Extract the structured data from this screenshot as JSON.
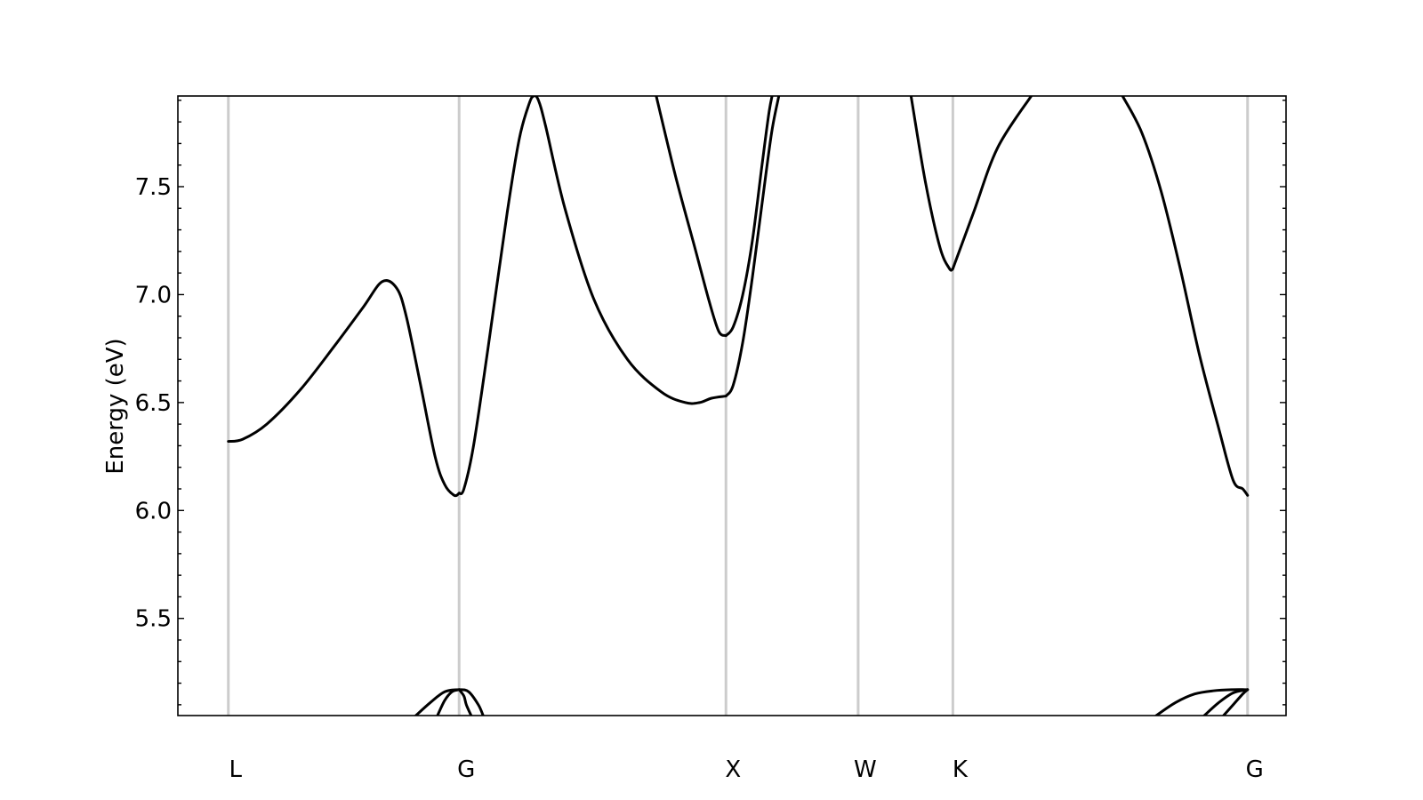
{
  "chart_data": {
    "type": "line",
    "ylabel": "Energy (eV)",
    "xlabel": "",
    "ylim": [
      5.05,
      7.92
    ],
    "xlim": [
      -0.105,
      2.2
    ],
    "yticks": [
      5.5,
      6.0,
      6.5,
      7.0,
      7.5
    ],
    "ytick_labels": [
      "5.5",
      "6.0",
      "6.5",
      "7.0",
      "7.5"
    ],
    "ytick_minor_step": 0.1,
    "grid": false,
    "high_symmetry_points": [
      {
        "label": "L",
        "x": 0.0
      },
      {
        "label": "G",
        "x": 0.48
      },
      {
        "label": "X",
        "x": 1.035
      },
      {
        "label": "W",
        "x": 1.31
      },
      {
        "label": "K",
        "x": 1.507
      },
      {
        "label": "G",
        "x": 2.12
      }
    ],
    "series": [
      {
        "x": [
          0.0,
          0.03,
          0.08,
          0.15,
          0.22,
          0.28,
          0.32,
          0.35,
          0.37,
          0.4,
          0.43,
          0.45,
          0.47,
          0.48
        ],
        "y": [
          6.32,
          6.33,
          6.4,
          6.56,
          6.76,
          6.94,
          7.06,
          7.03,
          6.9,
          6.58,
          6.25,
          6.12,
          6.07,
          6.08
        ]
      },
      {
        "x": [
          0.48,
          0.49,
          0.51,
          0.54,
          0.58,
          0.605,
          0.625,
          0.635,
          0.645,
          0.66,
          0.7,
          0.76,
          0.83,
          0.9,
          0.95,
          0.98,
          1.005,
          1.035
        ],
        "y": [
          6.08,
          6.1,
          6.3,
          6.75,
          7.38,
          7.72,
          7.88,
          7.92,
          7.9,
          7.78,
          7.4,
          6.98,
          6.7,
          6.55,
          6.5,
          6.5,
          6.52,
          6.53
        ]
      },
      {
        "x": [
          1.035,
          1.05,
          1.07,
          1.09,
          1.11,
          1.13,
          1.145,
          1.15
        ],
        "y": [
          6.53,
          6.58,
          6.78,
          7.08,
          7.42,
          7.75,
          7.92,
          7.98
        ]
      },
      {
        "x": [
          0.89,
          0.93,
          0.97,
          1.0,
          1.02,
          1.035
        ],
        "y": [
          7.92,
          7.55,
          7.22,
          6.97,
          6.83,
          6.81
        ]
      },
      {
        "x": [
          1.035,
          1.05,
          1.07,
          1.09,
          1.11,
          1.125,
          1.135
        ],
        "y": [
          6.81,
          6.85,
          7.0,
          7.25,
          7.6,
          7.85,
          7.96
        ]
      },
      {
        "x": [
          1.42,
          1.45,
          1.48,
          1.5,
          1.507
        ],
        "y": [
          7.92,
          7.52,
          7.22,
          7.12,
          7.12
        ]
      },
      {
        "x": [
          1.507,
          1.55,
          1.6,
          1.67
        ],
        "y": [
          7.12,
          7.38,
          7.68,
          7.92
        ]
      },
      {
        "x": [
          1.86,
          1.9,
          1.94,
          1.98,
          2.02,
          2.06,
          2.09,
          2.11,
          2.12
        ],
        "y": [
          7.92,
          7.75,
          7.48,
          7.12,
          6.72,
          6.38,
          6.14,
          6.1,
          6.07
        ]
      },
      {
        "x": [
          0.39,
          0.42,
          0.45,
          0.48,
          0.5,
          0.52,
          0.53
        ],
        "y": [
          5.05,
          5.11,
          5.16,
          5.17,
          5.16,
          5.1,
          5.05
        ]
      },
      {
        "x": [
          0.435,
          0.45,
          0.465,
          0.48
        ],
        "y": [
          5.05,
          5.12,
          5.16,
          5.17
        ]
      },
      {
        "x": [
          0.48,
          0.49,
          0.495,
          0.505
        ],
        "y": [
          5.17,
          5.14,
          5.1,
          5.05
        ]
      },
      {
        "x": [
          1.93,
          1.97,
          2.01,
          2.05,
          2.09,
          2.12
        ],
        "y": [
          5.05,
          5.11,
          5.15,
          5.165,
          5.17,
          5.17
        ]
      },
      {
        "x": [
          2.03,
          2.06,
          2.09,
          2.12
        ],
        "y": [
          5.05,
          5.11,
          5.155,
          5.17
        ]
      },
      {
        "x": [
          2.07,
          2.09,
          2.11,
          2.12
        ],
        "y": [
          5.05,
          5.1,
          5.15,
          5.17
        ]
      }
    ]
  }
}
